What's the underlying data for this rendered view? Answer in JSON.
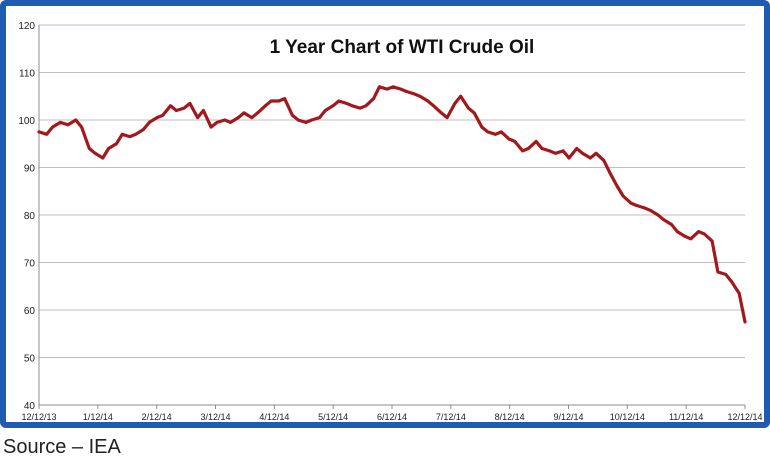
{
  "source": "Source – IEA",
  "colors": {
    "frame": "#1f5bb0",
    "line": "#a3181c",
    "grid": "#bfbfbf",
    "axis": "#8c8c8c"
  },
  "chart_data": {
    "type": "line",
    "title": "1 Year Chart of WTI Crude Oil",
    "xlabel": "",
    "ylabel": "",
    "ylim": [
      40,
      120
    ],
    "y_ticks": [
      "40",
      "50",
      "60",
      "70",
      "80",
      "90",
      "100",
      "110",
      "120"
    ],
    "x_tick_labels": [
      "12/12/13",
      "1/12/14",
      "2/12/14",
      "3/12/14",
      "4/12/14",
      "5/12/14",
      "6/12/14",
      "7/12/14",
      "8/12/14",
      "9/12/14",
      "10/12/14",
      "11/12/14",
      "12/12/14"
    ],
    "grid": true,
    "legend": "none",
    "series": [
      {
        "name": "",
        "x": [
          "2013-12-12",
          "2013-12-16",
          "2013-12-19",
          "2013-12-23",
          "2013-12-27",
          "2013-12-31",
          "2014-01-03",
          "2014-01-07",
          "2014-01-10",
          "2014-01-14",
          "2014-01-17",
          "2014-01-21",
          "2014-01-24",
          "2014-01-28",
          "2014-01-31",
          "2014-02-04",
          "2014-02-07",
          "2014-02-11",
          "2014-02-14",
          "2014-02-18",
          "2014-02-21",
          "2014-02-25",
          "2014-02-28",
          "2014-03-04",
          "2014-03-07",
          "2014-03-11",
          "2014-03-14",
          "2014-03-18",
          "2014-03-21",
          "2014-03-25",
          "2014-03-28",
          "2014-04-01",
          "2014-04-04",
          "2014-04-08",
          "2014-04-11",
          "2014-04-15",
          "2014-04-18",
          "2014-04-22",
          "2014-04-25",
          "2014-04-29",
          "2014-05-02",
          "2014-05-06",
          "2014-05-09",
          "2014-05-13",
          "2014-05-16",
          "2014-05-20",
          "2014-05-23",
          "2014-05-27",
          "2014-05-30",
          "2014-06-03",
          "2014-06-06",
          "2014-06-10",
          "2014-06-13",
          "2014-06-17",
          "2014-06-20",
          "2014-06-24",
          "2014-06-27",
          "2014-07-01",
          "2014-07-04",
          "2014-07-08",
          "2014-07-11",
          "2014-07-15",
          "2014-07-18",
          "2014-07-22",
          "2014-07-25",
          "2014-07-29",
          "2014-08-01",
          "2014-08-05",
          "2014-08-08",
          "2014-08-12",
          "2014-08-15",
          "2014-08-19",
          "2014-08-22",
          "2014-08-26",
          "2014-08-29",
          "2014-09-02",
          "2014-09-05",
          "2014-09-09",
          "2014-09-12",
          "2014-09-16",
          "2014-09-19",
          "2014-09-23",
          "2014-09-26",
          "2014-09-30",
          "2014-10-03",
          "2014-10-07",
          "2014-10-10",
          "2014-10-14",
          "2014-10-17",
          "2014-10-21",
          "2014-10-24",
          "2014-10-28",
          "2014-10-31",
          "2014-11-04",
          "2014-11-07",
          "2014-11-11",
          "2014-11-14",
          "2014-11-18",
          "2014-11-21",
          "2014-11-25",
          "2014-11-28",
          "2014-12-02",
          "2014-12-05",
          "2014-12-09",
          "2014-12-12"
        ],
        "values": [
          97.5,
          97.0,
          98.5,
          99.5,
          99.0,
          100.0,
          98.5,
          94.0,
          93.0,
          92.0,
          94.0,
          95.0,
          97.0,
          96.5,
          97.0,
          98.0,
          99.5,
          100.5,
          101.0,
          103.0,
          102.0,
          102.5,
          103.5,
          100.5,
          102.0,
          98.5,
          99.5,
          100.0,
          99.5,
          100.5,
          101.5,
          100.5,
          101.5,
          103.0,
          104.0,
          104.0,
          104.5,
          101.0,
          100.0,
          99.5,
          100.0,
          100.5,
          102.0,
          103.0,
          104.0,
          103.5,
          103.0,
          102.5,
          103.0,
          104.5,
          107.0,
          106.5,
          107.0,
          106.5,
          106.0,
          105.5,
          105.0,
          104.0,
          103.0,
          101.5,
          100.5,
          103.5,
          105.0,
          102.5,
          101.5,
          98.5,
          97.5,
          97.0,
          97.5,
          96.0,
          95.5,
          93.5,
          94.0,
          95.5,
          94.0,
          93.5,
          93.0,
          93.5,
          92.0,
          94.0,
          93.0,
          92.0,
          93.0,
          91.5,
          89.0,
          86.0,
          84.0,
          82.5,
          82.0,
          81.5,
          81.0,
          80.0,
          79.0,
          78.0,
          76.5,
          75.5,
          75.0,
          76.5,
          76.0,
          74.5,
          68.0,
          67.5,
          66.0,
          63.5,
          57.5
        ]
      }
    ]
  }
}
